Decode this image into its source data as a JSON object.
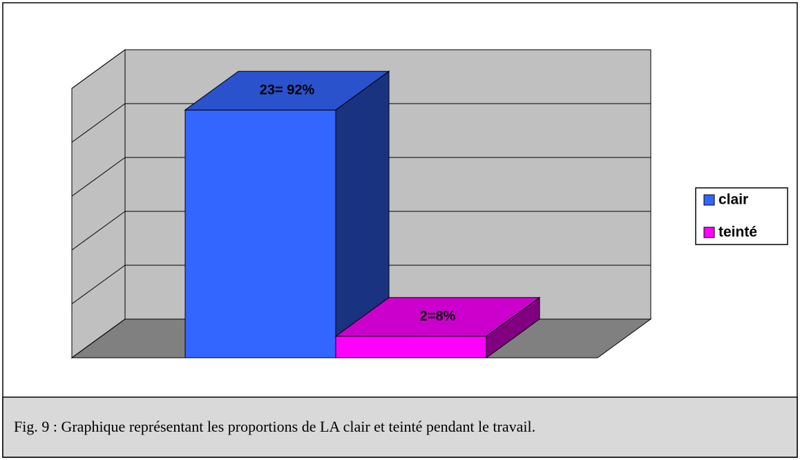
{
  "chart_data": {
    "type": "bar3d",
    "categories": [
      null
    ],
    "series": [
      {
        "name": "clair",
        "color": "#3366ff",
        "values": [
          23
        ],
        "value_labels": [
          "23= 92%"
        ]
      },
      {
        "name": "teinté",
        "color": "#ff00ff",
        "values": [
          2
        ],
        "value_labels": [
          "2=8%"
        ]
      }
    ],
    "ylim": [
      0,
      25
    ],
    "yticks": [
      0,
      5,
      10,
      15,
      20,
      25
    ],
    "grid": true,
    "legend": "right",
    "caption": "Fig. 9 : Graphique représentant les proportions de LA clair et teinté pendant le  travail."
  }
}
